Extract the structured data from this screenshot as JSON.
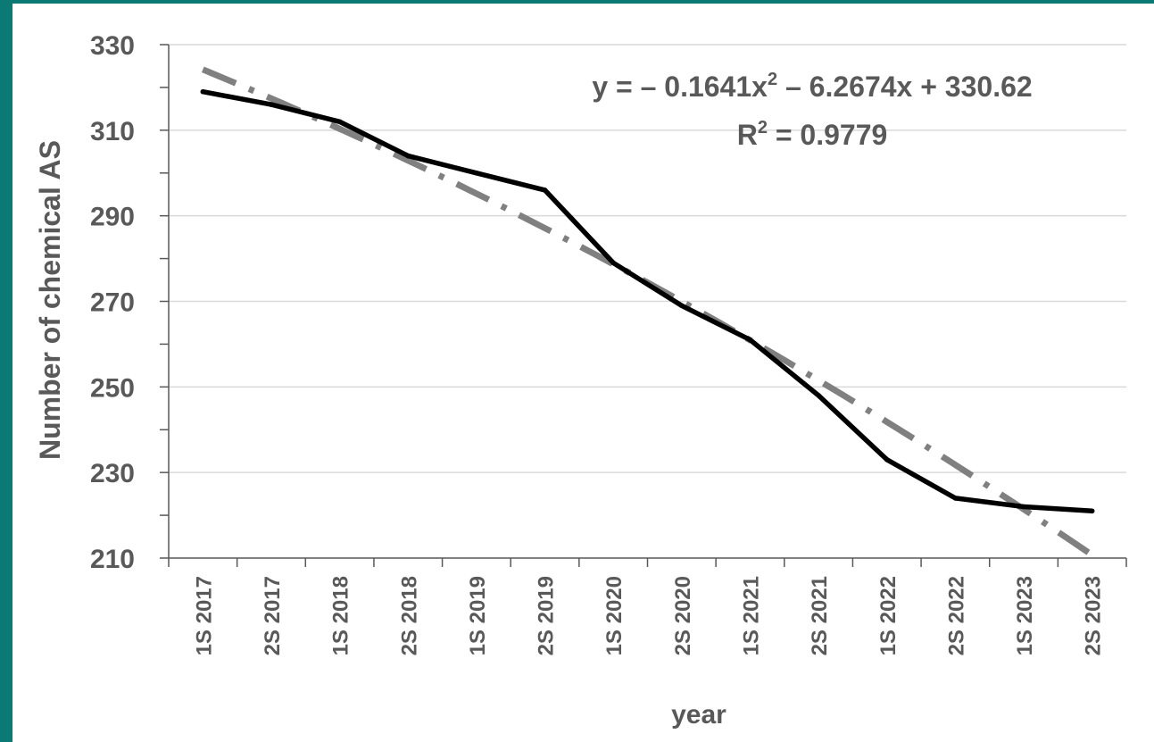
{
  "chart_data": {
    "type": "line",
    "title": "",
    "xlabel": "year",
    "ylabel": "Number of chemical AS",
    "categories": [
      "1S 2017",
      "2S 2017",
      "1S 2018",
      "2S 2018",
      "1S 2019",
      "2S 2019",
      "1S 2020",
      "2S 2020",
      "1S 2021",
      "2S 2021",
      "1S 2022",
      "2S 2022",
      "1S 2023",
      "2S 2023"
    ],
    "series": [
      {
        "values": [
          319,
          316,
          312,
          304,
          300,
          296,
          279,
          269,
          261,
          248,
          233,
          224,
          222,
          221
        ]
      }
    ],
    "trendline": {
      "type": "polynomial",
      "coefficients": [
        -0.1641,
        -6.2674,
        330.62
      ],
      "equation_lead": "y = – 0.1641x",
      "equation_sup": "2",
      "equation_tail": " – 6.2674x + 330.62",
      "r2_lead": "R",
      "r2_sup": "2",
      "r2_tail": " = 0.9779"
    },
    "ylim": [
      210,
      330
    ],
    "yticks": [
      210,
      230,
      250,
      270,
      290,
      310,
      330
    ],
    "grid": true,
    "legend": "none",
    "colors": {
      "series": "#000000",
      "trendline": "#808080",
      "grid": "#d9d9d9",
      "text": "#595959",
      "background": "#0b7a75"
    }
  }
}
